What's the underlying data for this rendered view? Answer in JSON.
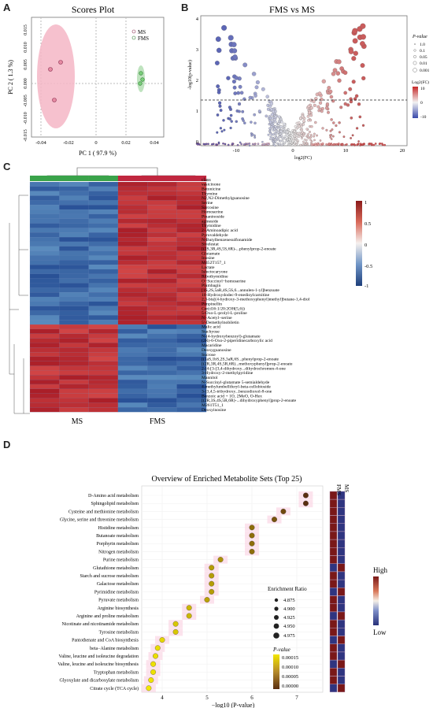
{
  "panels": {
    "A": "A",
    "B": "B",
    "C": "C",
    "D": "D"
  },
  "panel_a": {
    "title": "Scores Plot",
    "xlabel": "PC 1 ( 97.9 %)",
    "ylabel": "PC 2 ( 1.3 %)",
    "xticks": [
      "-0.04",
      "-0.02",
      "0",
      "0.02",
      "0.04"
    ],
    "yticks": [
      "0.015",
      "0.010",
      "0.005",
      "0.000",
      "-0.005",
      "-0.010",
      "-0.015"
    ],
    "legend": [
      "MS",
      "FMS"
    ]
  },
  "panel_b": {
    "title": "FMS  vs MS",
    "xlabel": "log2(FC)",
    "ylabel": "-log10(p-value)",
    "xticks": [
      "-10",
      "0",
      "10",
      "20"
    ],
    "yticks": [
      "0",
      "1",
      "2",
      "3",
      "4"
    ],
    "pvalue_legend_title": "P-value",
    "pvalue_legend": [
      "1.0",
      "0.1",
      "0.05",
      "0.01",
      "0.001"
    ],
    "fc_legend_title": "Log2(FC)",
    "fc_legend_ticks": [
      "10",
      "0",
      "-10"
    ]
  },
  "panel_c": {
    "class_label": "class",
    "columns": [
      "MS",
      "FMS"
    ],
    "colorbar_ticks": [
      "1",
      "0.5",
      "0",
      "-0.5",
      "-1"
    ],
    "rows": [
      "vasicinone",
      "Betonicine",
      "Thymine",
      "N2,N2-Dimethylguanosine",
      "Serine",
      "Sarcosine",
      "Homoserine",
      "Pinaninoside",
      "agmeside",
      "Thymidine",
      "2−Aminoadipic acid",
      "Pyruvaldehyde",
      "N-Butylbenzenesulfonamide",
      "Sivelestat",
      "[(2S,3R,4S,5S,6R)-...phenylprop-2-enoate",
      "Glutamate",
      "Inosine",
      "M452T157_1",
      "Lactate",
      "Isfectocaryone",
      "Ribothymidine",
      "O−Succinyl−homoserine",
      "Plumbagin",
      "[1S,2S,5aR,4S,5S,6...annulen-1-yl]benzoate",
      "10-Hydroxydodec-9-enedioylcarnitine",
      "2,3-bis[(4-hydroxy-3-methoxyphenyl)methyl]butane-1,4-diol",
      "Pimpinellin",
      "Cer(d16:1/20:2OH(5,6))",
      "5-Oxo-L-prolyl-L-proline",
      "N−Acetyl−serine",
      "5'-Demethylnobiletin",
      "Malic acid",
      "Stachyose",
      "N-(4-hydroxybenzoyl)-glutamate",
      "(2R)-6-Oxo-2-piperidinecarboxylic acid",
      "Macaridine",
      "Deoxyguanosine",
      "Sucrose",
      "[(1aS,1bS,2S,3aR,6S...phenylprop-2-enoate",
      "[(2R,3R,4S,5R,6R)...methoxyphenyl]prop-2-enoate",
      "2-[4-[3-[3,4-dihydroxy...dihydrochromen-4-one",
      "3-Hydroxy-2-methylpyridine",
      "Mannitol",
      "N-Succinyl-glutamate 5-semialdehyde",
      "4-methylumbelliferyl-beta-cellobioside",
      "3-[3,4,5-tribydroxy...benzodioxol-8-one",
      "Benzoic acid + 1O, 2MeO, O-Hex",
      "[(2R,3S,4S,5R,6R)-...dihydroxyphenyl]prop-2-enoate",
      "M261T51_1",
      "Deoxyinosine"
    ]
  },
  "panel_d": {
    "title": "Overview of Enriched Metabolite Sets (Top 25)",
    "xlabel": "−log10 (P-value)",
    "xticks": [
      "4",
      "5",
      "6",
      "7"
    ],
    "er_legend_title": "Enrichment Ratio",
    "er_legend": [
      "4.875",
      "4.900",
      "4.925",
      "4.950",
      "4.975"
    ],
    "p_legend_title": "P-value",
    "p_legend": [
      "0.00015",
      "0.00010",
      "0.00005",
      "0.00000"
    ],
    "strip_labels": [
      "FMS",
      "MS"
    ],
    "high_label": "High",
    "low_label": "Low",
    "pathways": [
      "D-Amino acid metabolism",
      "Sphingolipid metabolism",
      "Cysteine and methionine metabolism",
      "Glycine, serine and threonine metabolism",
      "Histidine metabolism",
      "Butanoate metabolism",
      "Porphyrin metabolism",
      "Nitrogen metabolism",
      "Purine metabolism",
      "Glutathione metabolism",
      "Starch and sucrose metabolism",
      "Galactose metabolism",
      "Pyrimidine metabolism",
      "Pyruvate metabolism",
      "Arginine biosynthesis",
      "Arginine and proline metabolism",
      "Nicotinate and nicotinamide metabolism",
      "Tyrosine metabolism",
      "Pantothenate and CoA biosynthesis",
      "beta−Alanine metabolism",
      "Valine, leucine and isoleucine degradation",
      "Valine, leucine and isoleucine biosynthesis",
      "Tryptophan metabolism",
      "Glyoxylate and dicarboxylate metabolism",
      "Citrate cycle (TCA cycle)"
    ],
    "neglog10p": [
      7.2,
      7.2,
      6.7,
      6.5,
      6.0,
      6.0,
      6.0,
      6.0,
      5.3,
      5.1,
      5.1,
      5.1,
      5.1,
      5.0,
      4.6,
      4.6,
      4.3,
      4.3,
      4.0,
      3.9,
      3.85,
      3.8,
      3.8,
      3.75,
      3.7
    ]
  },
  "colors": {
    "red": "#b2182b",
    "blue": "#2b5aa3",
    "green": "#4caf50",
    "pink": "#e8a0b4"
  }
}
